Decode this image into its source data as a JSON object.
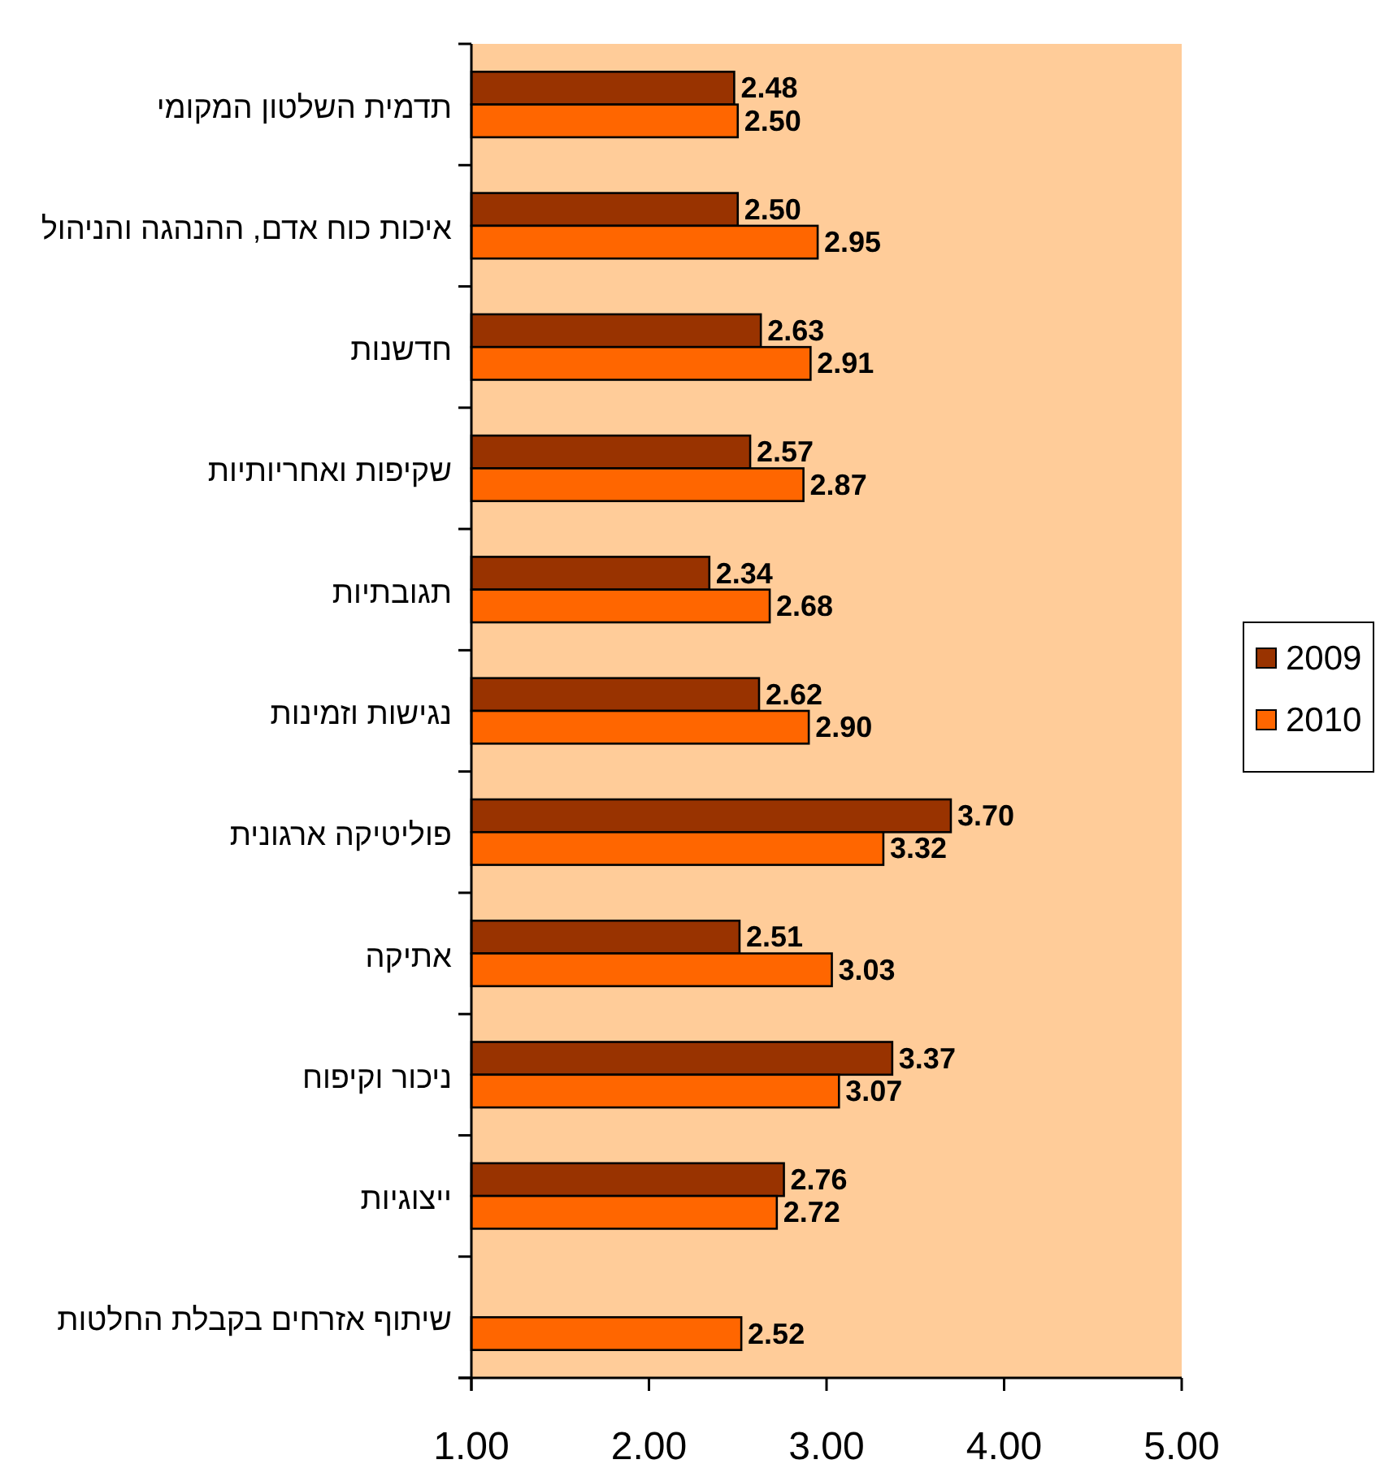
{
  "chart_data": {
    "type": "bar",
    "orientation": "horizontal",
    "categories": [
      "תדמית השלטון המקומי",
      "איכות כוח אדם, ההנהגה והניהול",
      "חדשנות",
      "שקיפות ואחריותיות",
      "תגובתיות",
      "נגישות וזמינות",
      "פוליטיקה ארגונית",
      "אתיקה",
      "ניכור וקיפוח",
      "ייצוגיות",
      "שיתוף אזרחים בקבלת החלטות"
    ],
    "series": [
      {
        "name": "2009",
        "color": "#993300",
        "values": [
          2.48,
          2.5,
          2.63,
          2.57,
          2.34,
          2.62,
          3.7,
          2.51,
          3.37,
          2.76,
          null
        ],
        "value_labels": [
          "2.48",
          "2.50",
          "2.63",
          "2.57",
          "2.34",
          "2.62",
          "3.70",
          "2.51",
          "3.37",
          "2.76",
          null
        ]
      },
      {
        "name": "2010",
        "color": "#ff6600",
        "values": [
          2.5,
          2.95,
          2.91,
          2.87,
          2.68,
          2.9,
          3.32,
          3.03,
          3.07,
          2.72,
          2.52
        ],
        "value_labels": [
          "2.50",
          "2.95",
          "2.91",
          "2.87",
          "2.68",
          "2.90",
          "3.32",
          "3.03",
          "3.07",
          "2.72",
          "2.52"
        ]
      }
    ],
    "xlim": [
      1,
      5
    ],
    "xticks": [
      {
        "value": 1,
        "label": "1.00"
      },
      {
        "value": 2,
        "label": "2.00"
      },
      {
        "value": 3,
        "label": "3.00"
      },
      {
        "value": 4,
        "label": "4.00"
      },
      {
        "value": 5,
        "label": "5.00"
      }
    ],
    "grid": false,
    "legend": "right"
  }
}
